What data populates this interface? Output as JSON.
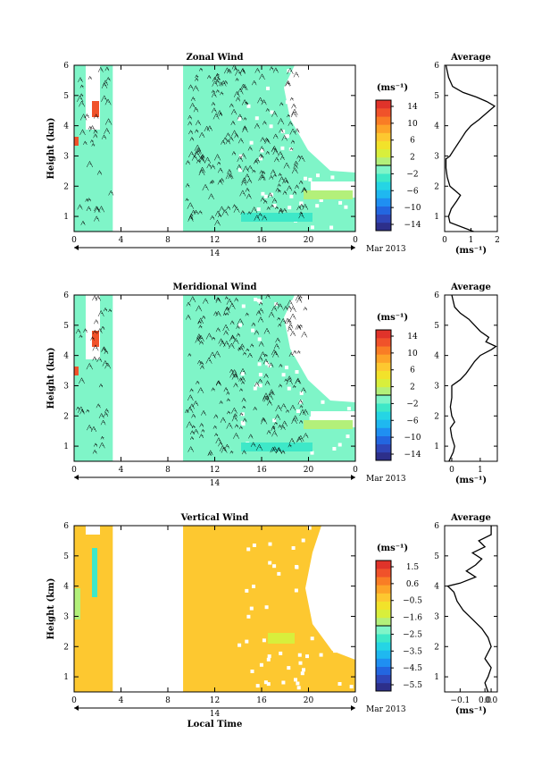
{
  "chart_data": [
    {
      "type": "heatmap",
      "title": "Zonal Wind",
      "ylabel": "Height (km)",
      "unit": "(ms⁻¹)",
      "x_ticks": [
        "0",
        "4",
        "8",
        "12",
        "16",
        "20",
        "0"
      ],
      "y_ticks": [
        "1",
        "2",
        "3",
        "4",
        "5",
        "6"
      ],
      "date_day": "14",
      "date_month": "Mar 2013",
      "xlim": [
        0,
        24
      ],
      "ylim": [
        0.5,
        6
      ],
      "colorbar_ticks": [
        "14",
        "10",
        "6",
        "2",
        "−2",
        "−6",
        "−10",
        "−14"
      ],
      "colorbar_range": [
        -16,
        16
      ],
      "dominant_color": "#7ff5c8",
      "data_gaps": [
        [
          3.3,
          9.3
        ]
      ],
      "average": {
        "title": "Average",
        "xlabel": "(ms⁻¹)",
        "x_ticks": [
          "0",
          "1",
          "2"
        ],
        "xlim": [
          0,
          2
        ],
        "profile": [
          [
            1.1,
            0.5
          ],
          [
            0.2,
            0.8
          ],
          [
            0.15,
            1.0
          ],
          [
            0.25,
            1.25
          ],
          [
            0.45,
            1.5
          ],
          [
            0.6,
            1.7
          ],
          [
            0.4,
            1.85
          ],
          [
            0.2,
            2.0
          ],
          [
            0.1,
            2.3
          ],
          [
            0.05,
            2.6
          ],
          [
            0.05,
            2.9
          ],
          [
            0.2,
            3.0
          ],
          [
            0.35,
            3.2
          ],
          [
            0.5,
            3.4
          ],
          [
            0.65,
            3.6
          ],
          [
            0.8,
            3.8
          ],
          [
            1.0,
            4.0
          ],
          [
            1.3,
            4.2
          ],
          [
            1.5,
            4.35
          ],
          [
            1.7,
            4.5
          ],
          [
            1.9,
            4.65
          ],
          [
            1.6,
            4.8
          ],
          [
            1.2,
            4.95
          ],
          [
            0.7,
            5.1
          ],
          [
            0.3,
            5.3
          ],
          [
            0.15,
            5.6
          ],
          [
            0.05,
            6.0
          ]
        ]
      }
    },
    {
      "type": "heatmap",
      "title": "Meridional Wind",
      "ylabel": "Height (km)",
      "unit": "(ms⁻¹)",
      "x_ticks": [
        "0",
        "4",
        "8",
        "12",
        "16",
        "20",
        "0"
      ],
      "y_ticks": [
        "1",
        "2",
        "3",
        "4",
        "5",
        "6"
      ],
      "date_day": "14",
      "date_month": "Mar 2013",
      "xlim": [
        0,
        24
      ],
      "ylim": [
        0.5,
        6
      ],
      "colorbar_ticks": [
        "14",
        "10",
        "6",
        "2",
        "−2",
        "−6",
        "−10",
        "−14"
      ],
      "colorbar_range": [
        -16,
        16
      ],
      "dominant_color": "#7ff5c8",
      "data_gaps": [
        [
          3.3,
          9.3
        ]
      ],
      "average": {
        "title": "Average",
        "xlabel": "(ms⁻¹)",
        "x_ticks": [
          "0",
          "1"
        ],
        "xlim": [
          -0.25,
          1.6
        ],
        "profile": [
          [
            -0.1,
            0.5
          ],
          [
            0.05,
            0.8
          ],
          [
            0.1,
            1.0
          ],
          [
            0.0,
            1.3
          ],
          [
            -0.05,
            1.6
          ],
          [
            0.1,
            1.8
          ],
          [
            0.0,
            2.0
          ],
          [
            -0.05,
            2.3
          ],
          [
            0.0,
            2.6
          ],
          [
            0.0,
            3.0
          ],
          [
            0.3,
            3.2
          ],
          [
            0.5,
            3.4
          ],
          [
            0.65,
            3.6
          ],
          [
            0.8,
            3.8
          ],
          [
            1.0,
            4.0
          ],
          [
            1.4,
            4.2
          ],
          [
            1.55,
            4.3
          ],
          [
            1.2,
            4.45
          ],
          [
            1.3,
            4.6
          ],
          [
            1.0,
            4.8
          ],
          [
            0.8,
            5.0
          ],
          [
            0.6,
            5.2
          ],
          [
            0.3,
            5.4
          ],
          [
            0.1,
            5.6
          ],
          [
            0.0,
            6.0
          ]
        ]
      }
    },
    {
      "type": "heatmap",
      "title": "Vertical Wind",
      "ylabel": "Height (km)",
      "xlabel": "Local Time",
      "unit": "(ms⁻¹)",
      "x_ticks": [
        "0",
        "4",
        "8",
        "12",
        "16",
        "20",
        "0"
      ],
      "y_ticks": [
        "1",
        "2",
        "3",
        "4",
        "5",
        "6"
      ],
      "date_day": "14",
      "date_month": "Mar 2013",
      "xlim": [
        0,
        24
      ],
      "ylim": [
        0.5,
        6
      ],
      "colorbar_ticks": [
        "1.5",
        "0.6",
        "−0.5",
        "−1.6",
        "−2.5",
        "−3.5",
        "−4.5",
        "−5.5"
      ],
      "colorbar_range": [
        -6,
        2
      ],
      "dominant_color": "#fdc830",
      "data_gaps": [
        [
          3.3,
          9.3
        ]
      ],
      "average": {
        "title": "Average",
        "xlabel": "(ms⁻¹)",
        "x_ticks": [
          "−0.1",
          "0.0",
          "0.0"
        ],
        "xlim": [
          -0.15,
          0.02
        ],
        "profile": [
          [
            -0.01,
            0.5
          ],
          [
            -0.02,
            0.8
          ],
          [
            -0.01,
            1.0
          ],
          [
            0.0,
            1.3
          ],
          [
            -0.02,
            1.6
          ],
          [
            -0.01,
            1.8
          ],
          [
            0.0,
            2.0
          ],
          [
            -0.01,
            2.3
          ],
          [
            -0.03,
            2.6
          ],
          [
            -0.06,
            2.9
          ],
          [
            -0.09,
            3.2
          ],
          [
            -0.11,
            3.5
          ],
          [
            -0.12,
            3.8
          ],
          [
            -0.14,
            4.0
          ],
          [
            -0.1,
            4.1
          ],
          [
            -0.05,
            4.3
          ],
          [
            -0.08,
            4.5
          ],
          [
            -0.05,
            4.7
          ],
          [
            -0.03,
            4.9
          ],
          [
            -0.06,
            5.1
          ],
          [
            -0.02,
            5.3
          ],
          [
            -0.04,
            5.5
          ],
          [
            0.0,
            5.7
          ],
          [
            0.0,
            6.0
          ]
        ]
      }
    }
  ]
}
